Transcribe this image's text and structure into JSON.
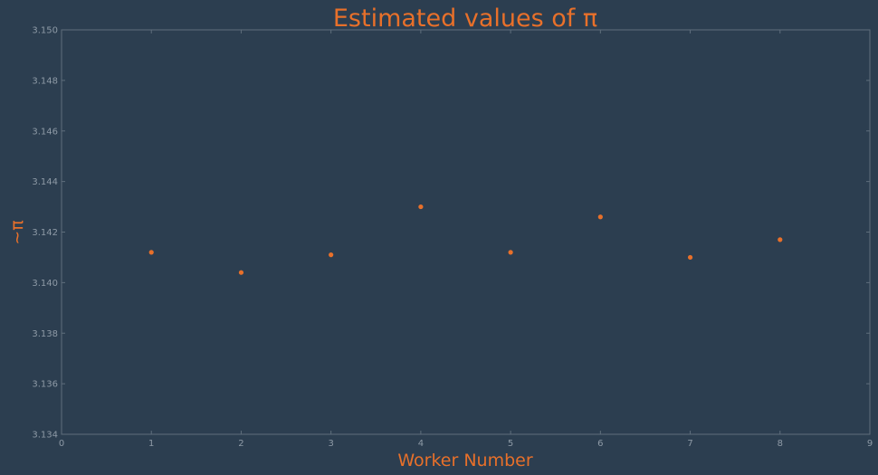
{
  "chart_data": {
    "type": "scatter",
    "title": "Estimated values of π",
    "xlabel": "Worker Number",
    "ylabel": "~π",
    "xlim": [
      0,
      9
    ],
    "ylim": [
      3.134,
      3.15
    ],
    "x_ticks": [
      "0",
      "1",
      "2",
      "3",
      "4",
      "5",
      "6",
      "7",
      "8",
      "9"
    ],
    "y_ticks": [
      "3.134",
      "3.136",
      "3.138",
      "3.140",
      "3.142",
      "3.144",
      "3.146",
      "3.148",
      "3.150"
    ],
    "grid": false,
    "series": [
      {
        "x": [
          1,
          2,
          3,
          4,
          5,
          6,
          7,
          8
        ],
        "y": [
          3.1412,
          3.1404,
          3.1411,
          3.143,
          3.1412,
          3.1426,
          3.141,
          3.1417
        ]
      }
    ],
    "colors": {
      "background": "#2c3e50",
      "marker": "#e8702a",
      "text": "#e8702a",
      "axis": "#5f6e7c",
      "tick_text": "#8e9aa6"
    }
  }
}
